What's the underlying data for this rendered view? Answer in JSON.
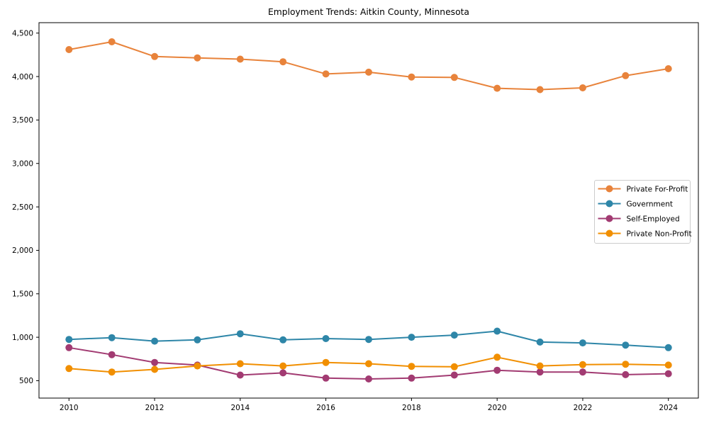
{
  "chart_data": {
    "type": "line",
    "title": "Employment Trends: Aitkin County, Minnesota",
    "xlabel": "",
    "ylabel": "",
    "x": [
      2010,
      2011,
      2012,
      2013,
      2014,
      2015,
      2016,
      2017,
      2018,
      2019,
      2020,
      2021,
      2022,
      2023,
      2024
    ],
    "series": [
      {
        "name": "Private For-Profit",
        "color": "#E8833B",
        "values": [
          4310,
          4400,
          4230,
          4215,
          4200,
          4170,
          4030,
          4050,
          3995,
          3990,
          3865,
          3850,
          3870,
          4010,
          4090
        ]
      },
      {
        "name": "Government",
        "color": "#2E86A8",
        "values": [
          975,
          995,
          955,
          970,
          1040,
          970,
          985,
          975,
          1000,
          1025,
          1070,
          945,
          935,
          910,
          880
        ]
      },
      {
        "name": "Self-Employed",
        "color": "#A23B72",
        "values": [
          880,
          800,
          710,
          680,
          565,
          590,
          530,
          520,
          530,
          565,
          620,
          600,
          600,
          570,
          580
        ]
      },
      {
        "name": "Private Non-Profit",
        "color": "#F18F01",
        "values": [
          640,
          600,
          630,
          670,
          695,
          670,
          710,
          695,
          665,
          660,
          770,
          670,
          685,
          690,
          680
        ]
      }
    ],
    "xlim": [
      2009.3,
      2024.7
    ],
    "ylim": [
      300,
      4620
    ],
    "xticks": [
      2010,
      2012,
      2014,
      2016,
      2018,
      2020,
      2022,
      2024
    ],
    "xtick_labels": [
      "2010",
      "2012",
      "2014",
      "2016",
      "2018",
      "2020",
      "2022",
      "2024"
    ],
    "yticks": [
      500,
      1000,
      1500,
      2000,
      2500,
      3000,
      3500,
      4000,
      4500
    ],
    "ytick_labels": [
      "500",
      "1,000",
      "1,500",
      "2,000",
      "2,500",
      "3,000",
      "3,500",
      "4,000",
      "4,500"
    ],
    "grid": false,
    "marker": "circle",
    "line_width": 2,
    "marker_radius": 5,
    "legend": {
      "position": "center right",
      "border_color": "#cccccc",
      "background": "#ffffff",
      "entries": [
        "Private For-Profit",
        "Government",
        "Self-Employed",
        "Private Non-Profit"
      ]
    },
    "colors": {
      "axis": "#000000",
      "text": "#000000",
      "figure_background": "#ffffff"
    }
  }
}
